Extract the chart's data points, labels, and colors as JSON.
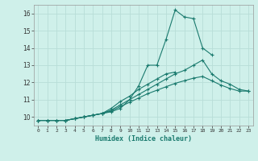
{
  "xlabel": "Humidex (Indice chaleur)",
  "ylabel": "",
  "background_color": "#cff0ea",
  "grid_color": "#b8ddd8",
  "line_color": "#1a7a6e",
  "xlim": [
    -0.5,
    23.5
  ],
  "ylim": [
    9.5,
    16.5
  ],
  "xticks": [
    0,
    1,
    2,
    3,
    4,
    5,
    6,
    7,
    8,
    9,
    10,
    11,
    12,
    13,
    14,
    15,
    16,
    17,
    18,
    19,
    20,
    21,
    22,
    23
  ],
  "yticks": [
    10,
    11,
    12,
    13,
    14,
    15,
    16
  ],
  "series": [
    {
      "x": [
        0,
        1,
        2,
        3,
        4,
        5,
        6,
        7,
        8,
        9,
        10,
        11,
        12,
        13,
        14,
        15,
        16,
        17,
        18,
        19
      ],
      "y": [
        9.8,
        9.8,
        9.8,
        9.8,
        9.9,
        10.0,
        10.1,
        10.2,
        10.3,
        10.5,
        11.0,
        11.8,
        13.0,
        13.0,
        14.5,
        16.2,
        15.8,
        15.7,
        14.0,
        13.6
      ]
    },
    {
      "x": [
        0,
        1,
        2,
        3,
        4,
        5,
        6,
        7,
        8,
        9,
        10,
        11,
        12,
        13,
        14,
        15,
        16,
        17,
        18,
        19,
        20,
        21,
        22,
        23
      ],
      "y": [
        9.8,
        9.8,
        9.8,
        9.8,
        9.9,
        10.0,
        10.1,
        10.2,
        10.35,
        10.6,
        10.85,
        11.1,
        11.35,
        11.55,
        11.75,
        11.95,
        12.1,
        12.25,
        12.35,
        12.1,
        11.85,
        11.65,
        11.5,
        11.5
      ]
    },
    {
      "x": [
        0,
        1,
        2,
        3,
        4,
        5,
        6,
        7,
        8,
        9,
        10,
        11,
        12,
        13,
        14,
        15,
        16,
        17,
        18,
        19,
        20,
        21,
        22,
        23
      ],
      "y": [
        9.8,
        9.8,
        9.8,
        9.8,
        9.9,
        10.0,
        10.1,
        10.2,
        10.4,
        10.7,
        11.0,
        11.3,
        11.6,
        11.9,
        12.2,
        12.5,
        12.7,
        13.0,
        13.3,
        12.5,
        12.1,
        11.9,
        11.6,
        11.5
      ]
    },
    {
      "x": [
        0,
        1,
        2,
        3,
        4,
        5,
        6,
        7,
        8,
        9,
        10,
        11,
        12,
        13,
        14,
        15,
        16,
        17,
        18,
        19,
        20,
        21,
        22,
        23
      ],
      "y": [
        9.8,
        9.8,
        9.8,
        9.8,
        9.9,
        10.0,
        10.1,
        10.2,
        10.5,
        10.9,
        11.2,
        11.6,
        11.9,
        12.2,
        12.5,
        12.6,
        null,
        null,
        null,
        null,
        null,
        null,
        null,
        null
      ]
    }
  ]
}
